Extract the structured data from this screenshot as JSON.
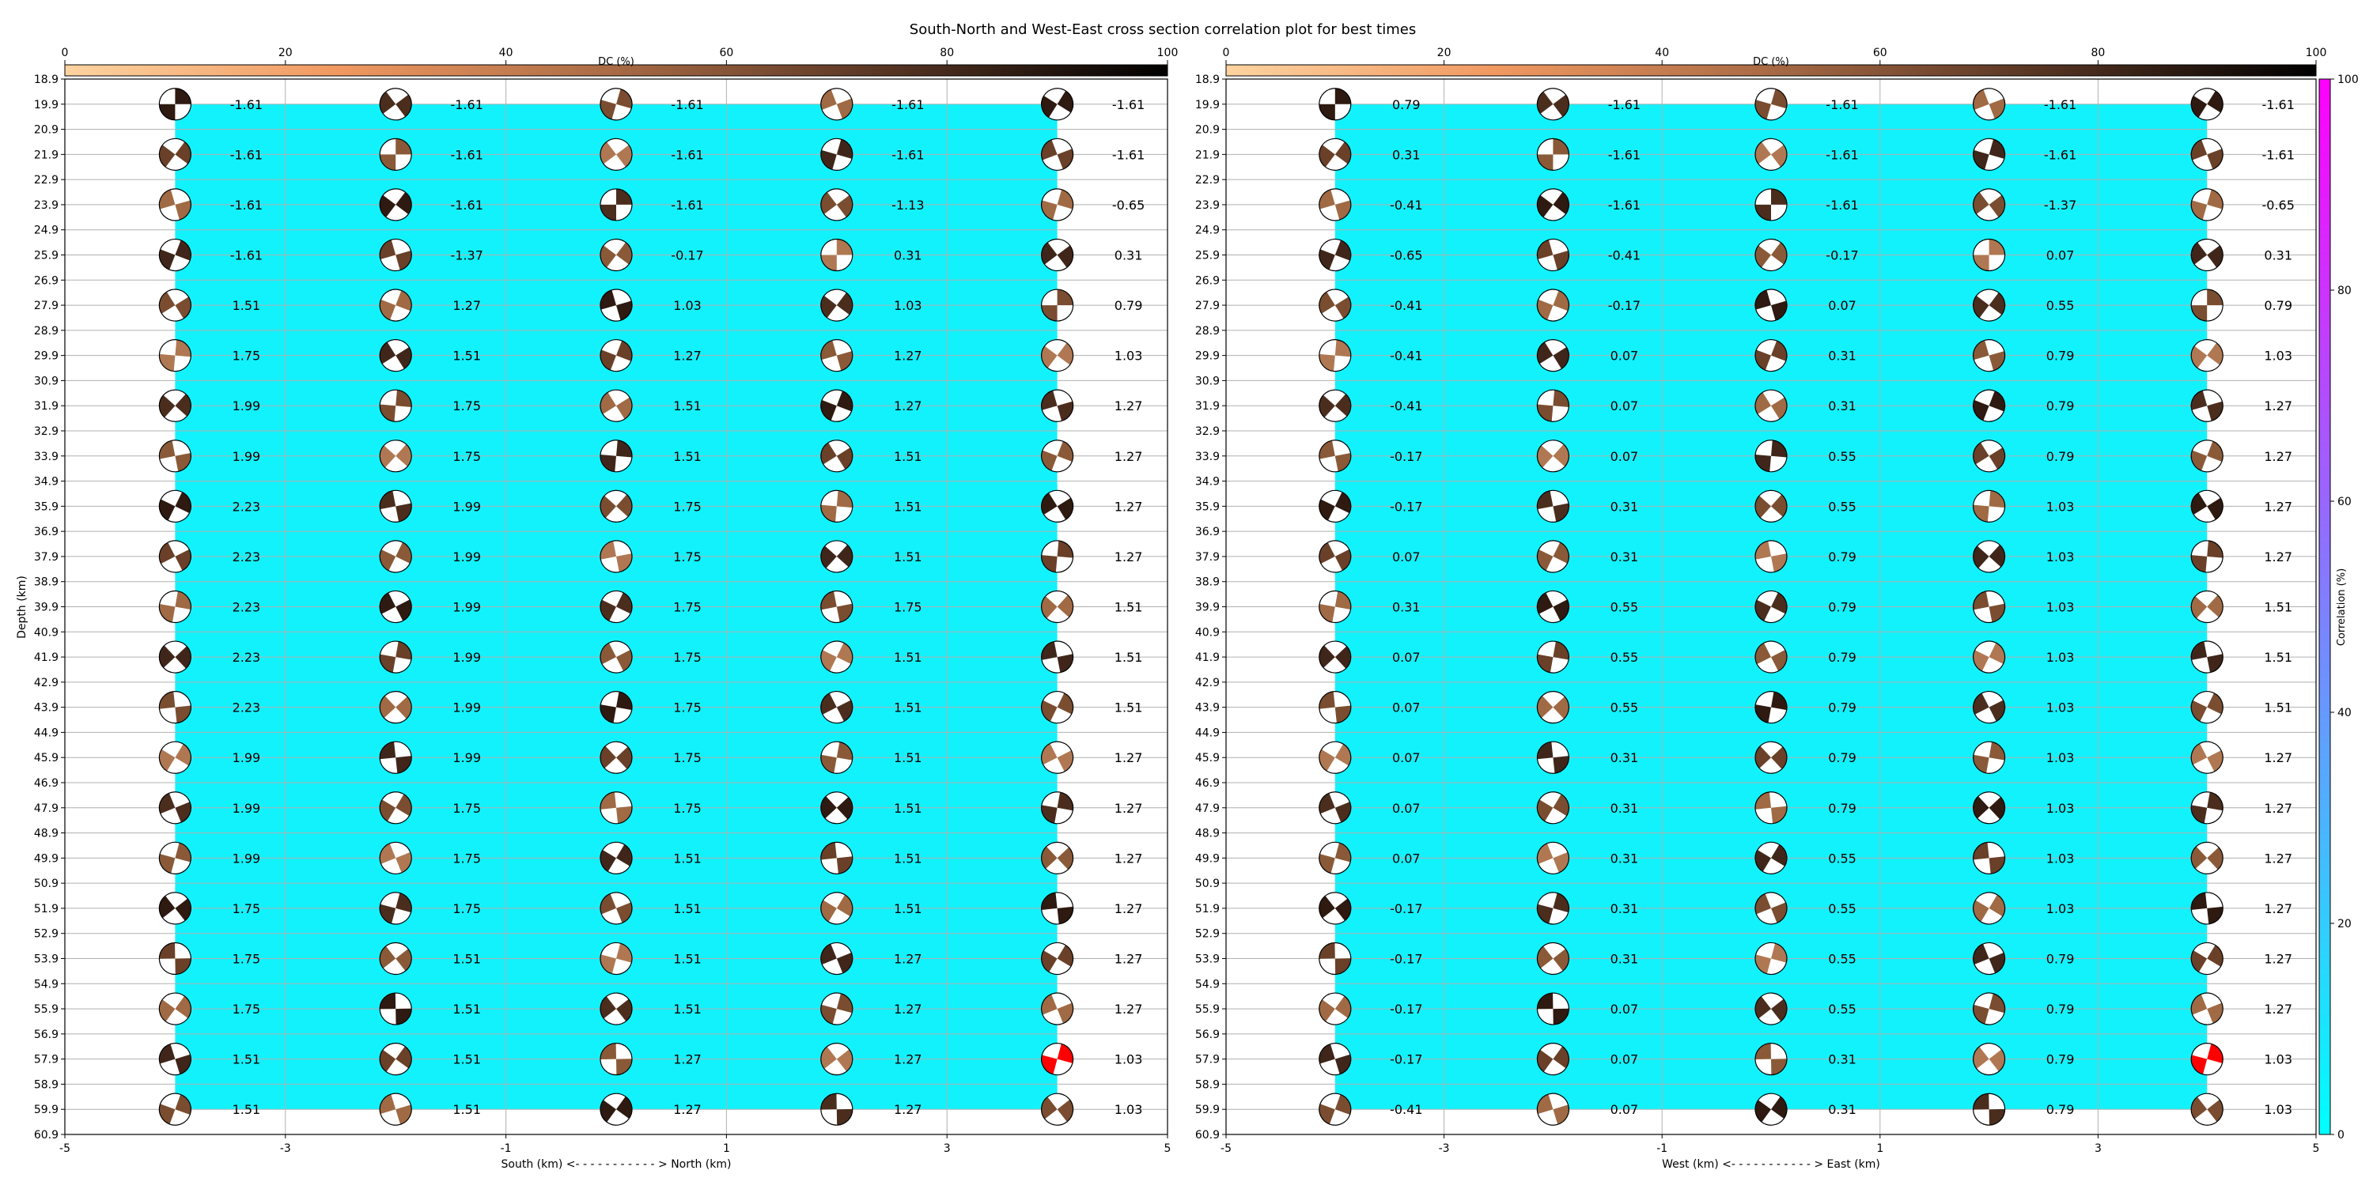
{
  "title": "South-North and West-East cross section correlation plot for best times",
  "colorbars": {
    "dc": {
      "label": "DC (%)",
      "range": [
        0,
        100
      ],
      "ticks": [
        "0",
        "20",
        "40",
        "60",
        "80",
        "100"
      ]
    },
    "correlation": {
      "label": "Correlation (%)",
      "range": [
        0,
        100
      ],
      "ticks": [
        "0",
        "20",
        "40",
        "60",
        "80",
        "100"
      ]
    }
  },
  "colors": {
    "background_fill": "#12f2fc",
    "grid": "#b0b0b0",
    "best_solution": "#ff0000",
    "dc_light": "#fdd3a0",
    "dc_dark": "#000000",
    "corr_low": "#00ffff",
    "corr_high": "#ff00ff"
  },
  "chart_data": [
    {
      "type": "scatter",
      "name": "south-north",
      "xlabel": "South (km) <- - - - - - - - - - - > North (km)",
      "ylabel": "Depth (km)",
      "xlim": [
        -5,
        5
      ],
      "ylim": [
        60.9,
        18.9
      ],
      "x_ticks": [
        "-5",
        "-3",
        "-1",
        "1",
        "3",
        "5"
      ],
      "y_ticks": [
        "18.9",
        "19.9",
        "20.9",
        "21.9",
        "22.9",
        "23.9",
        "24.9",
        "25.9",
        "26.9",
        "27.9",
        "28.9",
        "29.9",
        "30.9",
        "31.9",
        "32.9",
        "33.9",
        "34.9",
        "35.9",
        "36.9",
        "37.9",
        "38.9",
        "39.9",
        "40.9",
        "41.9",
        "42.9",
        "43.9",
        "44.9",
        "45.9",
        "46.9",
        "47.9",
        "48.9",
        "49.9",
        "50.9",
        "51.9",
        "52.9",
        "53.9",
        "54.9",
        "55.9",
        "56.9",
        "57.9",
        "58.9",
        "59.9",
        "60.9"
      ],
      "x": [
        -4,
        -2,
        0,
        2,
        4
      ],
      "depths": [
        19.9,
        21.9,
        23.9,
        25.9,
        27.9,
        29.9,
        31.9,
        33.9,
        35.9,
        37.9,
        39.9,
        41.9,
        43.9,
        45.9,
        47.9,
        49.9,
        51.9,
        53.9,
        55.9,
        57.9,
        59.9
      ],
      "labels": [
        [
          "-1.61",
          "-1.61",
          "-1.61",
          "-1.61",
          "-1.61"
        ],
        [
          "-1.61",
          "-1.61",
          "-1.61",
          "-1.61",
          "-1.61"
        ],
        [
          "-1.61",
          "-1.61",
          "-1.61",
          "-1.13",
          "-0.65"
        ],
        [
          "-1.61",
          "-1.37",
          "-0.17",
          "0.31",
          "0.31"
        ],
        [
          "1.51",
          "1.27",
          "1.03",
          "1.03",
          "0.79"
        ],
        [
          "1.75",
          "1.51",
          "1.27",
          "1.27",
          "1.03"
        ],
        [
          "1.99",
          "1.75",
          "1.51",
          "1.27",
          "1.27"
        ],
        [
          "1.99",
          "1.75",
          "1.51",
          "1.51",
          "1.27"
        ],
        [
          "2.23",
          "1.99",
          "1.75",
          "1.51",
          "1.27"
        ],
        [
          "2.23",
          "1.99",
          "1.75",
          "1.51",
          "1.27"
        ],
        [
          "2.23",
          "1.99",
          "1.75",
          "1.75",
          "1.51"
        ],
        [
          "2.23",
          "1.99",
          "1.75",
          "1.51",
          "1.51"
        ],
        [
          "2.23",
          "1.99",
          "1.75",
          "1.51",
          "1.51"
        ],
        [
          "1.99",
          "1.99",
          "1.75",
          "1.51",
          "1.27"
        ],
        [
          "1.99",
          "1.75",
          "1.75",
          "1.51",
          "1.27"
        ],
        [
          "1.99",
          "1.75",
          "1.51",
          "1.51",
          "1.27"
        ],
        [
          "1.75",
          "1.75",
          "1.51",
          "1.51",
          "1.27"
        ],
        [
          "1.75",
          "1.51",
          "1.51",
          "1.27",
          "1.27"
        ],
        [
          "1.75",
          "1.51",
          "1.51",
          "1.27",
          "1.27"
        ],
        [
          "1.51",
          "1.51",
          "1.27",
          "1.27",
          "1.03"
        ],
        [
          "1.51",
          "1.51",
          "1.27",
          "1.27",
          "1.03"
        ]
      ]
    },
    {
      "type": "scatter",
      "name": "west-east",
      "xlabel": "West (km) <- - - - - - - - - - - > East (km)",
      "ylabel": "",
      "xlim": [
        -5,
        5
      ],
      "ylim": [
        60.9,
        18.9
      ],
      "x_ticks": [
        "-5",
        "-3",
        "-1",
        "1",
        "3",
        "5"
      ],
      "y_ticks": [
        "18.9",
        "19.9",
        "20.9",
        "21.9",
        "22.9",
        "23.9",
        "24.9",
        "25.9",
        "26.9",
        "27.9",
        "28.9",
        "29.9",
        "30.9",
        "31.9",
        "32.9",
        "33.9",
        "34.9",
        "35.9",
        "36.9",
        "37.9",
        "38.9",
        "39.9",
        "40.9",
        "41.9",
        "42.9",
        "43.9",
        "44.9",
        "45.9",
        "46.9",
        "47.9",
        "48.9",
        "49.9",
        "50.9",
        "51.9",
        "52.9",
        "53.9",
        "54.9",
        "55.9",
        "56.9",
        "57.9",
        "58.9",
        "59.9",
        "60.9"
      ],
      "x": [
        -4,
        -2,
        0,
        2,
        4
      ],
      "depths": [
        19.9,
        21.9,
        23.9,
        25.9,
        27.9,
        29.9,
        31.9,
        33.9,
        35.9,
        37.9,
        39.9,
        41.9,
        43.9,
        45.9,
        47.9,
        49.9,
        51.9,
        53.9,
        55.9,
        57.9,
        59.9
      ],
      "labels": [
        [
          "0.79",
          "-1.61",
          "-1.61",
          "-1.61",
          "-1.61"
        ],
        [
          "0.31",
          "-1.61",
          "-1.61",
          "-1.61",
          "-1.61"
        ],
        [
          "-0.41",
          "-1.61",
          "-1.61",
          "-1.37",
          "-0.65"
        ],
        [
          "-0.65",
          "-0.41",
          "-0.17",
          "0.07",
          "0.31"
        ],
        [
          "-0.41",
          "-0.17",
          "0.07",
          "0.55",
          "0.79"
        ],
        [
          "-0.41",
          "0.07",
          "0.31",
          "0.79",
          "1.03"
        ],
        [
          "-0.41",
          "0.07",
          "0.31",
          "0.79",
          "1.27"
        ],
        [
          "-0.17",
          "0.07",
          "0.55",
          "0.79",
          "1.27"
        ],
        [
          "-0.17",
          "0.31",
          "0.55",
          "1.03",
          "1.27"
        ],
        [
          "0.07",
          "0.31",
          "0.79",
          "1.03",
          "1.27"
        ],
        [
          "0.31",
          "0.55",
          "0.79",
          "1.03",
          "1.51"
        ],
        [
          "0.07",
          "0.55",
          "0.79",
          "1.03",
          "1.51"
        ],
        [
          "0.07",
          "0.55",
          "0.79",
          "1.03",
          "1.51"
        ],
        [
          "0.07",
          "0.31",
          "0.79",
          "1.03",
          "1.27"
        ],
        [
          "0.07",
          "0.31",
          "0.79",
          "1.03",
          "1.27"
        ],
        [
          "0.07",
          "0.31",
          "0.55",
          "1.03",
          "1.27"
        ],
        [
          "-0.17",
          "0.31",
          "0.55",
          "1.03",
          "1.27"
        ],
        [
          "-0.17",
          "0.31",
          "0.55",
          "0.79",
          "1.27"
        ],
        [
          "-0.17",
          "0.07",
          "0.55",
          "0.79",
          "1.27"
        ],
        [
          "-0.17",
          "0.07",
          "0.31",
          "0.79",
          "1.03"
        ],
        [
          "-0.41",
          "0.07",
          "0.31",
          "0.79",
          "1.03"
        ]
      ]
    }
  ],
  "best_solution": {
    "x": 4,
    "depth": 57.9,
    "color": "#ff0000"
  }
}
